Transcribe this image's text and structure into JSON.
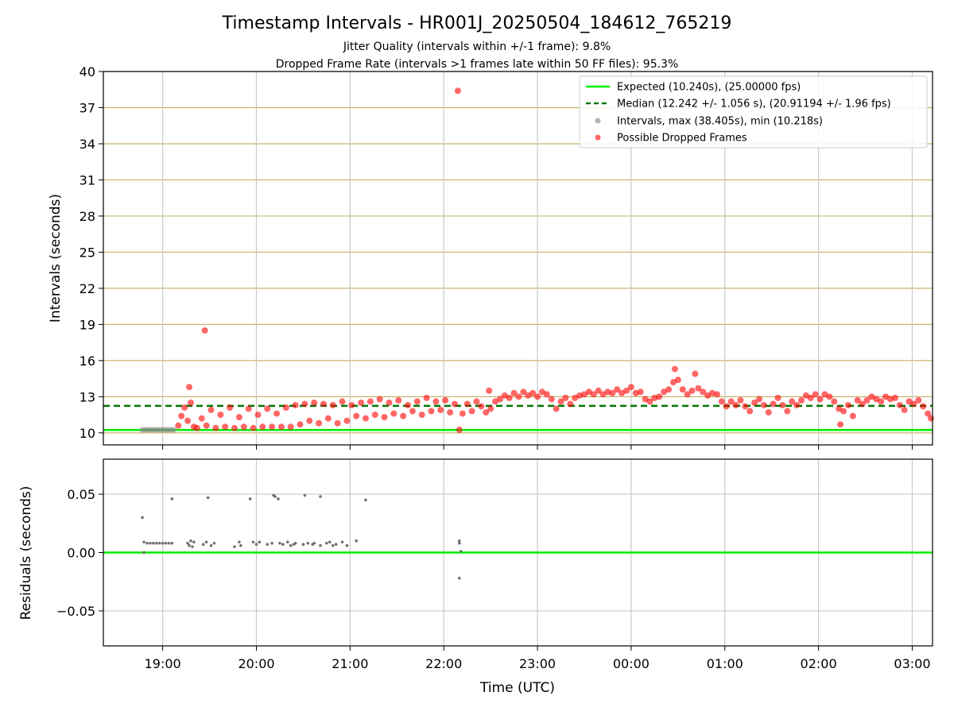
{
  "chart_data": [
    {
      "type": "scatter",
      "title": "Timestamp Intervals - HR001J_20250504_184612_765219",
      "subtitles": [
        "Jitter Quality (intervals within +/-1 frame): 9.8%",
        "Dropped Frame Rate (intervals >1 frames late within 50 FF files): 95.3%"
      ],
      "xlabel": "",
      "ylabel": "Intervals (seconds)",
      "ylim": [
        9.0,
        40.0
      ],
      "xlim": [
        "18:22",
        "03:13"
      ],
      "yticks": [
        "10",
        "13",
        "16",
        "19",
        "22",
        "25",
        "28",
        "31",
        "34",
        "37",
        "40"
      ],
      "grid": true,
      "legend_position": "top-right",
      "lines": [
        {
          "name": "Expected (10.240s), (25.00000 fps)",
          "y": 10.24,
          "style": "solid",
          "color": "#00ee00"
        },
        {
          "name": "Median (12.242 +/- 1.056 s), (20.91194 +/- 1.96 fps)",
          "y": 12.242,
          "style": "dashed",
          "color": "#007700"
        }
      ],
      "series": [
        {
          "name": "Intervals, max (38.405s), min (10.218s)",
          "color": "#808080",
          "points": [
            [
              "18:47",
              10.25
            ],
            [
              "18:49",
              10.25
            ],
            [
              "18:51",
              10.25
            ],
            [
              "18:53",
              10.25
            ],
            [
              "18:55",
              10.25
            ],
            [
              "18:57",
              10.25
            ],
            [
              "18:59",
              10.25
            ],
            [
              "19:01",
              10.25
            ],
            [
              "19:03",
              10.25
            ],
            [
              "19:05",
              10.25
            ],
            [
              "19:07",
              10.25
            ]
          ]
        },
        {
          "name": "Possible Dropped Frames",
          "color": "#ff0000",
          "points": [
            [
              "19:10",
              10.6
            ],
            [
              "19:12",
              11.4
            ],
            [
              "19:14",
              12.1
            ],
            [
              "19:16",
              11.0
            ],
            [
              "19:18",
              12.5
            ],
            [
              "19:20",
              10.5
            ],
            [
              "19:17",
              13.8
            ],
            [
              "19:27",
              18.5
            ],
            [
              "19:22",
              10.4
            ],
            [
              "19:25",
              11.2
            ],
            [
              "19:28",
              10.6
            ],
            [
              "19:31",
              11.9
            ],
            [
              "19:34",
              10.4
            ],
            [
              "19:37",
              11.5
            ],
            [
              "19:40",
              10.5
            ],
            [
              "19:43",
              12.1
            ],
            [
              "19:46",
              10.4
            ],
            [
              "19:49",
              11.3
            ],
            [
              "19:52",
              10.5
            ],
            [
              "19:55",
              12.0
            ],
            [
              "19:58",
              10.4
            ],
            [
              "20:01",
              11.5
            ],
            [
              "20:04",
              10.5
            ],
            [
              "20:07",
              12.0
            ],
            [
              "20:10",
              10.5
            ],
            [
              "20:13",
              11.6
            ],
            [
              "20:16",
              10.5
            ],
            [
              "20:19",
              12.1
            ],
            [
              "20:22",
              10.5
            ],
            [
              "20:25",
              12.3
            ],
            [
              "20:28",
              10.7
            ],
            [
              "20:31",
              12.4
            ],
            [
              "20:34",
              11.0
            ],
            [
              "20:37",
              12.5
            ],
            [
              "20:40",
              10.8
            ],
            [
              "20:43",
              12.4
            ],
            [
              "20:46",
              11.2
            ],
            [
              "20:49",
              12.3
            ],
            [
              "20:52",
              10.8
            ],
            [
              "20:55",
              12.6
            ],
            [
              "20:58",
              11.0
            ],
            [
              "21:01",
              12.3
            ],
            [
              "21:04",
              11.4
            ],
            [
              "21:07",
              12.5
            ],
            [
              "21:10",
              11.2
            ],
            [
              "21:13",
              12.6
            ],
            [
              "21:16",
              11.5
            ],
            [
              "21:19",
              12.8
            ],
            [
              "21:22",
              11.3
            ],
            [
              "21:25",
              12.5
            ],
            [
              "21:28",
              11.6
            ],
            [
              "21:31",
              12.7
            ],
            [
              "21:34",
              11.4
            ],
            [
              "21:37",
              12.3
            ],
            [
              "21:40",
              11.8
            ],
            [
              "21:43",
              12.6
            ],
            [
              "21:46",
              11.5
            ],
            [
              "21:49",
              12.9
            ],
            [
              "21:52",
              11.8
            ],
            [
              "21:55",
              12.6
            ],
            [
              "21:58",
              11.9
            ],
            [
              "22:01",
              12.7
            ],
            [
              "22:04",
              11.7
            ],
            [
              "22:07",
              12.4
            ],
            [
              "22:09",
              38.4
            ],
            [
              "22:10",
              10.25
            ],
            [
              "22:12",
              11.6
            ],
            [
              "22:15",
              12.4
            ],
            [
              "22:18",
              11.8
            ],
            [
              "22:21",
              12.6
            ],
            [
              "22:24",
              12.2
            ],
            [
              "22:27",
              11.7
            ],
            [
              "22:29",
              13.5
            ],
            [
              "22:30",
              12.0
            ],
            [
              "22:33",
              12.6
            ],
            [
              "22:36",
              12.8
            ],
            [
              "22:39",
              13.1
            ],
            [
              "22:42",
              12.9
            ],
            [
              "22:45",
              13.3
            ],
            [
              "22:48",
              13.0
            ],
            [
              "22:51",
              13.4
            ],
            [
              "22:54",
              13.1
            ],
            [
              "22:57",
              13.3
            ],
            [
              "23:00",
              13.0
            ],
            [
              "23:03",
              13.4
            ],
            [
              "23:06",
              13.2
            ],
            [
              "23:09",
              12.8
            ],
            [
              "23:12",
              12.0
            ],
            [
              "23:15",
              12.6
            ],
            [
              "23:18",
              12.9
            ],
            [
              "23:21",
              12.4
            ],
            [
              "23:24",
              12.9
            ],
            [
              "23:27",
              13.1
            ],
            [
              "23:30",
              13.2
            ],
            [
              "23:33",
              13.4
            ],
            [
              "23:36",
              13.2
            ],
            [
              "23:39",
              13.5
            ],
            [
              "23:42",
              13.2
            ],
            [
              "23:45",
              13.4
            ],
            [
              "23:48",
              13.3
            ],
            [
              "23:51",
              13.6
            ],
            [
              "23:54",
              13.3
            ],
            [
              "23:57",
              13.5
            ],
            [
              "00:00",
              13.8
            ],
            [
              "00:03",
              13.3
            ],
            [
              "00:06",
              13.4
            ],
            [
              "00:09",
              12.8
            ],
            [
              "00:12",
              12.6
            ],
            [
              "00:15",
              12.9
            ],
            [
              "00:18",
              13.0
            ],
            [
              "00:21",
              13.4
            ],
            [
              "00:24",
              13.6
            ],
            [
              "00:27",
              14.2
            ],
            [
              "00:28",
              15.3
            ],
            [
              "00:30",
              14.4
            ],
            [
              "00:33",
              13.6
            ],
            [
              "00:36",
              13.2
            ],
            [
              "00:39",
              13.5
            ],
            [
              "00:41",
              14.9
            ],
            [
              "00:43",
              13.7
            ],
            [
              "00:46",
              13.4
            ],
            [
              "00:49",
              13.1
            ],
            [
              "00:52",
              13.3
            ],
            [
              "00:55",
              13.2
            ],
            [
              "00:58",
              12.6
            ],
            [
              "01:01",
              12.2
            ],
            [
              "01:04",
              12.6
            ],
            [
              "01:07",
              12.3
            ],
            [
              "01:10",
              12.7
            ],
            [
              "01:13",
              12.2
            ],
            [
              "01:16",
              11.8
            ],
            [
              "01:19",
              12.5
            ],
            [
              "01:22",
              12.8
            ],
            [
              "01:25",
              12.3
            ],
            [
              "01:28",
              11.7
            ],
            [
              "01:31",
              12.4
            ],
            [
              "01:34",
              12.9
            ],
            [
              "01:37",
              12.3
            ],
            [
              "01:40",
              11.8
            ],
            [
              "01:43",
              12.6
            ],
            [
              "01:46",
              12.3
            ],
            [
              "01:49",
              12.7
            ],
            [
              "01:52",
              13.1
            ],
            [
              "01:55",
              12.9
            ],
            [
              "01:58",
              13.2
            ],
            [
              "02:01",
              12.8
            ],
            [
              "02:04",
              13.2
            ],
            [
              "02:07",
              13.0
            ],
            [
              "02:10",
              12.6
            ],
            [
              "02:13",
              12.0
            ],
            [
              "02:14",
              10.7
            ],
            [
              "02:16",
              11.8
            ],
            [
              "02:19",
              12.3
            ],
            [
              "02:22",
              11.4
            ],
            [
              "02:25",
              12.7
            ],
            [
              "02:28",
              12.4
            ],
            [
              "02:31",
              12.7
            ],
            [
              "02:34",
              13.0
            ],
            [
              "02:37",
              12.8
            ],
            [
              "02:40",
              12.6
            ],
            [
              "02:43",
              13.0
            ],
            [
              "02:46",
              12.8
            ],
            [
              "02:49",
              12.9
            ],
            [
              "02:52",
              12.3
            ],
            [
              "02:55",
              11.9
            ],
            [
              "02:58",
              12.6
            ],
            [
              "03:01",
              12.4
            ],
            [
              "03:04",
              12.7
            ],
            [
              "03:07",
              12.2
            ],
            [
              "03:10",
              11.6
            ],
            [
              "03:12",
              11.2
            ]
          ]
        }
      ]
    },
    {
      "type": "scatter",
      "xlabel": "Time (UTC)",
      "ylabel": "Residuals (seconds)",
      "ylim": [
        -0.08,
        0.08
      ],
      "yticks": [
        "−0.05",
        "0.00",
        "0.05"
      ],
      "xticks": [
        "19:00",
        "20:00",
        "21:00",
        "22:00",
        "23:00",
        "00:00",
        "01:00",
        "02:00",
        "03:00"
      ],
      "grid": true,
      "lines": [
        {
          "y": 0,
          "style": "solid",
          "color": "#00ee00"
        }
      ],
      "series": [
        {
          "name": "Residuals",
          "color": "#707070",
          "points": [
            [
              "18:47",
              0.03
            ],
            [
              "18:48",
              0.0
            ],
            [
              "18:48",
              0.009
            ],
            [
              "18:50",
              0.008
            ],
            [
              "18:52",
              0.008
            ],
            [
              "18:54",
              0.008
            ],
            [
              "18:56",
              0.008
            ],
            [
              "18:58",
              0.008
            ],
            [
              "19:00",
              0.008
            ],
            [
              "19:02",
              0.008
            ],
            [
              "19:04",
              0.008
            ],
            [
              "19:06",
              0.008
            ],
            [
              "19:06",
              0.046
            ],
            [
              "19:16",
              0.008
            ],
            [
              "19:17",
              0.006
            ],
            [
              "19:18",
              0.01
            ],
            [
              "19:19",
              0.005
            ],
            [
              "19:20",
              0.009
            ],
            [
              "19:26",
              0.007
            ],
            [
              "19:28",
              0.009
            ],
            [
              "19:29",
              0.047
            ],
            [
              "19:31",
              0.006
            ],
            [
              "19:33",
              0.008
            ],
            [
              "19:46",
              0.005
            ],
            [
              "19:49",
              0.009
            ],
            [
              "19:50",
              0.006
            ],
            [
              "19:56",
              0.046
            ],
            [
              "19:58",
              0.009
            ],
            [
              "20:00",
              0.007
            ],
            [
              "20:02",
              0.009
            ],
            [
              "20:07",
              0.007
            ],
            [
              "20:10",
              0.008
            ],
            [
              "20:11",
              0.049
            ],
            [
              "20:12",
              0.048
            ],
            [
              "20:14",
              0.046
            ],
            [
              "20:15",
              0.008
            ],
            [
              "20:17",
              0.007
            ],
            [
              "20:20",
              0.009
            ],
            [
              "20:22",
              0.006
            ],
            [
              "20:24",
              0.007
            ],
            [
              "20:25",
              0.008
            ],
            [
              "20:30",
              0.007
            ],
            [
              "20:31",
              0.049
            ],
            [
              "20:33",
              0.008
            ],
            [
              "20:36",
              0.007
            ],
            [
              "20:37",
              0.008
            ],
            [
              "20:41",
              0.048
            ],
            [
              "20:41",
              0.006
            ],
            [
              "20:45",
              0.008
            ],
            [
              "20:47",
              0.009
            ],
            [
              "20:49",
              0.006
            ],
            [
              "20:51",
              0.007
            ],
            [
              "20:55",
              0.009
            ],
            [
              "20:58",
              0.006
            ],
            [
              "21:04",
              0.01
            ],
            [
              "21:10",
              0.045
            ],
            [
              "22:10",
              0.01
            ],
            [
              "22:10",
              0.008
            ],
            [
              "22:11",
              0.001
            ],
            [
              "22:10",
              -0.022
            ]
          ]
        }
      ]
    }
  ]
}
